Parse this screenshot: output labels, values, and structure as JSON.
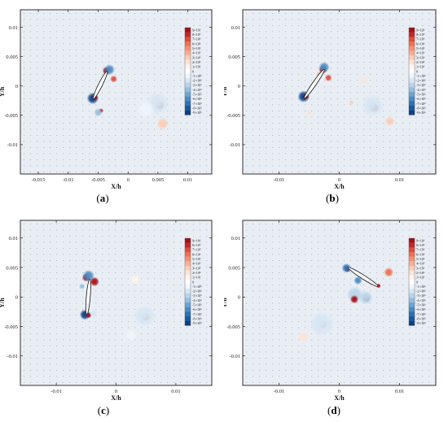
{
  "colors": {
    "background": "#e9eef5",
    "plot_frame": "#000000",
    "dot_grid": "#a8b0bb"
  },
  "colorbar": {
    "labels": [
      "9×10⁶",
      "8×10⁶",
      "7×10⁶",
      "6×10⁶",
      "5×10⁶",
      "4×10⁶",
      "3×10⁶",
      "2×10⁶",
      "1×10⁶",
      "0",
      "-1×10⁶",
      "-2×10⁶",
      "-3×10⁶",
      "-4×10⁶",
      "-5×10⁶",
      "-6×10⁶",
      "-7×10⁶",
      "-8×10⁶",
      "-9×10⁶"
    ],
    "colors": [
      "#a50f15",
      "#c8242a",
      "#e04d3b",
      "#ee7052",
      "#f69170",
      "#fab093",
      "#fcccb5",
      "#fde4d6",
      "#fff4ee",
      "#ffffff",
      "#eef5fb",
      "#d6e6f4",
      "#b9d4ea",
      "#94bfe0",
      "#6ca5d3",
      "#4a8bc4",
      "#2f71b2",
      "#1a589e",
      "#0b3f87"
    ]
  },
  "chart_data": [
    {
      "type": "heatmap",
      "panel_label": "a",
      "xlabel": "X/h",
      "ylabel": "Y/h",
      "xlim": [
        -0.018,
        0.014
      ],
      "ylim": [
        -0.015,
        0.013
      ],
      "x_ticks": [
        -0.015,
        -0.01,
        -0.005,
        0,
        0.005,
        0.01
      ],
      "x_tick_labels": [
        "-0.015",
        "-0.01",
        "-0.005",
        "0",
        "0.005",
        "0.01"
      ],
      "y_ticks": [
        -0.01,
        -0.005,
        0,
        0.005,
        0.01
      ],
      "y_tick_labels": [
        "-0.01",
        "-0.005",
        "0",
        "0.005",
        "0.01"
      ],
      "plate": {
        "x1": -0.0058,
        "y1": -0.0022,
        "x2": -0.0035,
        "y2": 0.0025
      },
      "vortices": [
        {
          "x": -0.0036,
          "y": 0.0026,
          "value": 9000000.0,
          "r": 0.0007
        },
        {
          "x": -0.0031,
          "y": 0.0028,
          "value": -6000000.0,
          "r": 0.0009
        },
        {
          "x": -0.0024,
          "y": 0.0012,
          "value": 7000000.0,
          "r": 0.0006
        },
        {
          "x": -0.0059,
          "y": -0.0021,
          "value": -9000000.0,
          "r": 0.001
        },
        {
          "x": -0.0055,
          "y": -0.002,
          "value": 9000000.0,
          "r": 0.0005
        },
        {
          "x": -0.0045,
          "y": -0.0042,
          "value": 8000000.0,
          "r": 0.0004
        },
        {
          "x": -0.005,
          "y": -0.0045,
          "value": -4000000.0,
          "r": 0.0007
        },
        {
          "x": 0.0053,
          "y": -0.0033,
          "value": 9000000.0,
          "r": 0.0008
        },
        {
          "x": 0.005,
          "y": -0.003,
          "value": -2000000.0,
          "r": 0.002
        },
        {
          "x": 0.0058,
          "y": -0.0064,
          "value": 3000000.0,
          "r": 0.001
        },
        {
          "x": 0.003,
          "y": -0.004,
          "value": -1000000.0,
          "r": 0.0015
        }
      ]
    },
    {
      "type": "heatmap",
      "panel_label": "b",
      "xlabel": "X/h",
      "ylabel": "Y/h",
      "xlim": [
        -0.016,
        0.016
      ],
      "ylim": [
        -0.015,
        0.013
      ],
      "x_ticks": [
        -0.01,
        0,
        0.01
      ],
      "x_tick_labels": [
        "-0.01",
        "0",
        "0.01"
      ],
      "y_ticks": [
        -0.01,
        -0.005,
        0,
        0.005,
        0.01
      ],
      "y_tick_labels": [
        "-0.01",
        "-0.005",
        "0",
        "0.005",
        "0.01"
      ],
      "plate": {
        "x1": -0.0058,
        "y1": -0.0021,
        "x2": -0.0025,
        "y2": 0.0028
      },
      "vortices": [
        {
          "x": -0.0027,
          "y": 0.0028,
          "value": 9000000.0,
          "r": 0.0007
        },
        {
          "x": -0.0025,
          "y": 0.0032,
          "value": -6000000.0,
          "r": 0.0009
        },
        {
          "x": -0.0033,
          "y": 0.002,
          "value": 4000000.0,
          "r": 0.0005
        },
        {
          "x": -0.0018,
          "y": 0.0014,
          "value": 7000000.0,
          "r": 0.0006
        },
        {
          "x": -0.0059,
          "y": -0.0018,
          "value": -9000000.0,
          "r": 0.001
        },
        {
          "x": -0.0055,
          "y": -0.0018,
          "value": 9000000.0,
          "r": 0.0005
        },
        {
          "x": -0.005,
          "y": -0.0045,
          "value": 2000000.0,
          "r": 0.0005
        },
        {
          "x": 0.002,
          "y": -0.0028,
          "value": 3000000.0,
          "r": 0.0004
        },
        {
          "x": 0.0058,
          "y": -0.0037,
          "value": 9000000.0,
          "r": 0.0008
        },
        {
          "x": 0.0055,
          "y": -0.0034,
          "value": -2000000.0,
          "r": 0.002
        },
        {
          "x": 0.0084,
          "y": -0.006,
          "value": 3000000.0,
          "r": 0.0008
        },
        {
          "x": 0.004,
          "y": 0.001,
          "value": 2000000.0,
          "r": 0.0006
        }
      ]
    },
    {
      "type": "heatmap",
      "panel_label": "c",
      "xlabel": "X/h",
      "ylabel": "Y/h",
      "xlim": [
        -0.016,
        0.016
      ],
      "ylim": [
        -0.015,
        0.013
      ],
      "x_ticks": [
        -0.01,
        0,
        0.01
      ],
      "x_tick_labels": [
        "-0.01",
        "0",
        "0.01"
      ],
      "y_ticks": [
        -0.01,
        -0.005,
        0,
        0.005,
        0.01
      ],
      "y_tick_labels": [
        "-0.01",
        "-0.005",
        "0",
        "0.005",
        "0.01"
      ],
      "plate": {
        "x1": -0.0049,
        "y1": -0.003,
        "x2": -0.0044,
        "y2": 0.003
      },
      "vortices": [
        {
          "x": -0.005,
          "y": 0.0033,
          "value": 9000000.0,
          "r": 0.0007
        },
        {
          "x": -0.0046,
          "y": 0.0036,
          "value": -6000000.0,
          "r": 0.001
        },
        {
          "x": -0.0036,
          "y": 0.0026,
          "value": 9000000.0,
          "r": 0.0008
        },
        {
          "x": -0.0057,
          "y": 0.0018,
          "value": -4000000.0,
          "r": 0.0005
        },
        {
          "x": -0.0052,
          "y": -0.003,
          "value": -9000000.0,
          "r": 0.0009
        },
        {
          "x": -0.0046,
          "y": -0.0031,
          "value": 9000000.0,
          "r": 0.0005
        },
        {
          "x": -0.0038,
          "y": -0.0027,
          "value": -2000000.0,
          "r": 0.0006
        },
        {
          "x": 0.005,
          "y": -0.0034,
          "value": 9000000.0,
          "r": 0.0007
        },
        {
          "x": 0.0048,
          "y": -0.0032,
          "value": -2000000.0,
          "r": 0.0019
        },
        {
          "x": 0.0032,
          "y": 0.003,
          "value": 1000000.0,
          "r": 0.0008
        },
        {
          "x": 0.0025,
          "y": -0.0065,
          "value": -1000000.0,
          "r": 0.001
        }
      ]
    },
    {
      "type": "heatmap",
      "panel_label": "d",
      "xlabel": "X/h",
      "ylabel": "Y/h",
      "xlim": [
        -0.016,
        0.016
      ],
      "ylim": [
        -0.015,
        0.013
      ],
      "x_ticks": [
        -0.01,
        0,
        0.01
      ],
      "x_tick_labels": [
        "-0.01",
        "0",
        "0.01"
      ],
      "y_ticks": [
        -0.01,
        -0.005,
        0,
        0.005,
        0.01
      ],
      "y_tick_labels": [
        "-0.01",
        "-0.005",
        "0",
        "0.005",
        "0.01"
      ],
      "plate": {
        "x1": 0.0015,
        "y1": 0.005,
        "x2": 0.0064,
        "y2": 0.0018
      },
      "vortices": [
        {
          "x": 0.0014,
          "y": 0.0047,
          "value": 9000000.0,
          "r": 0.0005
        },
        {
          "x": 0.0012,
          "y": 0.0049,
          "value": -7000000.0,
          "r": 0.0008
        },
        {
          "x": 0.0031,
          "y": 0.0028,
          "value": -6000000.0,
          "r": 0.0007
        },
        {
          "x": 0.0065,
          "y": 0.0019,
          "value": 9000000.0,
          "r": 0.0004
        },
        {
          "x": 0.0082,
          "y": 0.0042,
          "value": 6000000.0,
          "r": 0.0008
        },
        {
          "x": 0.0026,
          "y": 0.0004,
          "value": -3000000.0,
          "r": 0.0014
        },
        {
          "x": 0.0025,
          "y": -0.0004,
          "value": 9000000.0,
          "r": 0.0007
        },
        {
          "x": 0.0045,
          "y": -0.0003,
          "value": 9000000.0,
          "r": 0.0006
        },
        {
          "x": 0.0044,
          "y": -0.0001,
          "value": -3000000.0,
          "r": 0.0012
        },
        {
          "x": -0.0027,
          "y": -0.0047,
          "value": 9000000.0,
          "r": 0.0007
        },
        {
          "x": -0.0028,
          "y": -0.0046,
          "value": -2000000.0,
          "r": 0.0022
        },
        {
          "x": -0.006,
          "y": -0.0068,
          "value": 2000000.0,
          "r": 0.001
        }
      ]
    }
  ]
}
